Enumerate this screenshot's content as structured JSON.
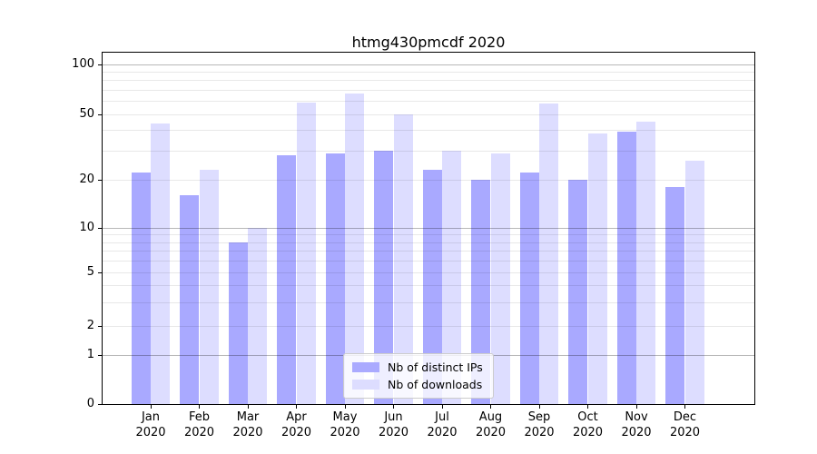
{
  "chart_data": {
    "type": "bar",
    "title": "htmg430pmcdf 2020",
    "categories": [
      "Jan",
      "Feb",
      "Mar",
      "Apr",
      "May",
      "Jun",
      "Jul",
      "Aug",
      "Sep",
      "Oct",
      "Nov",
      "Dec"
    ],
    "category_year": "2020",
    "series": [
      {
        "name": "Nb of distinct IPs",
        "color": "#aaaaff",
        "values": [
          22,
          16,
          8,
          28,
          29,
          30,
          23,
          20,
          22,
          20,
          39,
          18
        ]
      },
      {
        "name": "Nb of downloads",
        "color": "#ddddff",
        "values": [
          44,
          23,
          10,
          59,
          67,
          50,
          30,
          29,
          58,
          38,
          45,
          26
        ]
      }
    ],
    "yticks": [
      0,
      1,
      2,
      5,
      10,
      20,
      50,
      100
    ],
    "ylim": [
      0,
      115
    ],
    "yscale": "symlog",
    "grid": "both",
    "legend_position": "lower center",
    "grid_minor_color": "#e8e8e8",
    "grid_major_color": "#b8b8b8"
  }
}
